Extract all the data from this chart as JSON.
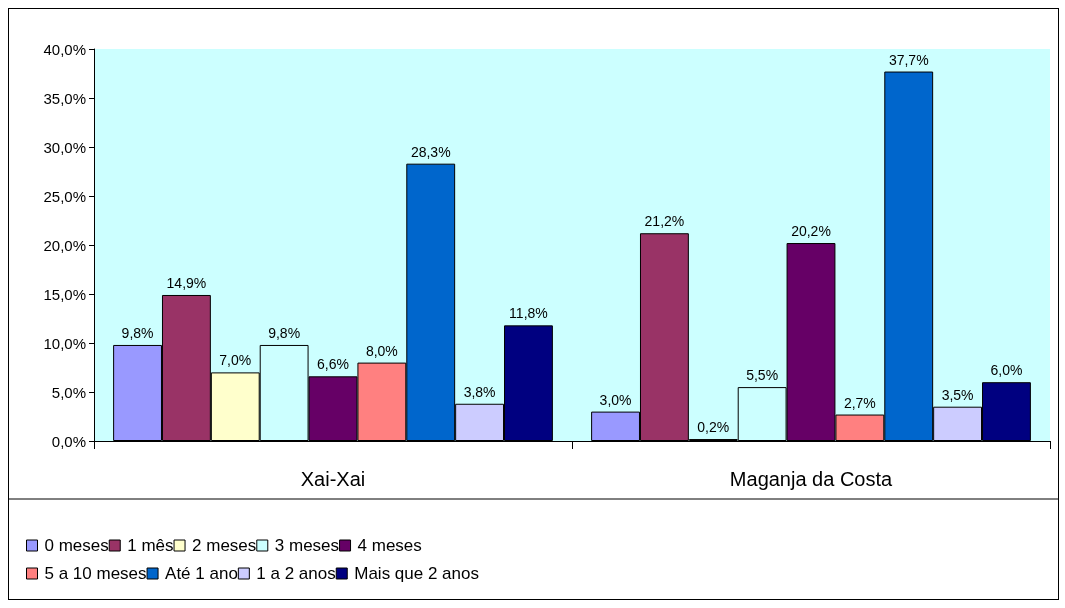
{
  "chart_data": {
    "type": "bar",
    "categories": [
      "Xai-Xai",
      "Maganja da Costa"
    ],
    "series": [
      {
        "name": "0 meses",
        "color": "#9999ff",
        "values": [
          9.8,
          3.0
        ],
        "value_labels": [
          "9,8%",
          "3,0%"
        ]
      },
      {
        "name": "1 mês",
        "color": "#993366",
        "values": [
          14.9,
          21.2
        ],
        "value_labels": [
          "14,9%",
          "21,2%"
        ]
      },
      {
        "name": "2 meses",
        "color": "#ffffcc",
        "values": [
          7.0,
          0.2
        ],
        "value_labels": [
          "7,0%",
          "0,2%"
        ]
      },
      {
        "name": "3 meses",
        "color": "#ccffff",
        "values": [
          9.8,
          5.5
        ],
        "value_labels": [
          "9,8%",
          "5,5%"
        ]
      },
      {
        "name": "4 meses",
        "color": "#660066",
        "values": [
          6.6,
          20.2
        ],
        "value_labels": [
          "6,6%",
          "20,2%"
        ]
      },
      {
        "name": "5 a 10 meses",
        "color": "#ff8080",
        "values": [
          8.0,
          2.7
        ],
        "value_labels": [
          "8,0%",
          "2,7%"
        ]
      },
      {
        "name": "Até 1 ano",
        "color": "#0066cc",
        "values": [
          28.3,
          37.7
        ],
        "value_labels": [
          "28,3%",
          "37,7%"
        ]
      },
      {
        "name": "1 a 2 anos",
        "color": "#ccccff",
        "values": [
          3.8,
          3.5
        ],
        "value_labels": [
          "3,8%",
          "3,5%"
        ]
      },
      {
        "name": "Mais que 2 anos",
        "color": "#000080",
        "values": [
          11.8,
          6.0
        ],
        "value_labels": [
          "11,8%",
          "6,0%"
        ]
      }
    ],
    "ylim": [
      0,
      40
    ],
    "yticks": [
      {
        "value": 0,
        "label": "0,0%"
      },
      {
        "value": 5,
        "label": "5,0%"
      },
      {
        "value": 10,
        "label": "10,0%"
      },
      {
        "value": 15,
        "label": "15,0%"
      },
      {
        "value": 20,
        "label": "20,0%"
      },
      {
        "value": 25,
        "label": "25,0%"
      },
      {
        "value": 30,
        "label": "30,0%"
      },
      {
        "value": 35,
        "label": "35,0%"
      },
      {
        "value": 40,
        "label": "40,0%"
      }
    ],
    "legend": "bottom"
  }
}
